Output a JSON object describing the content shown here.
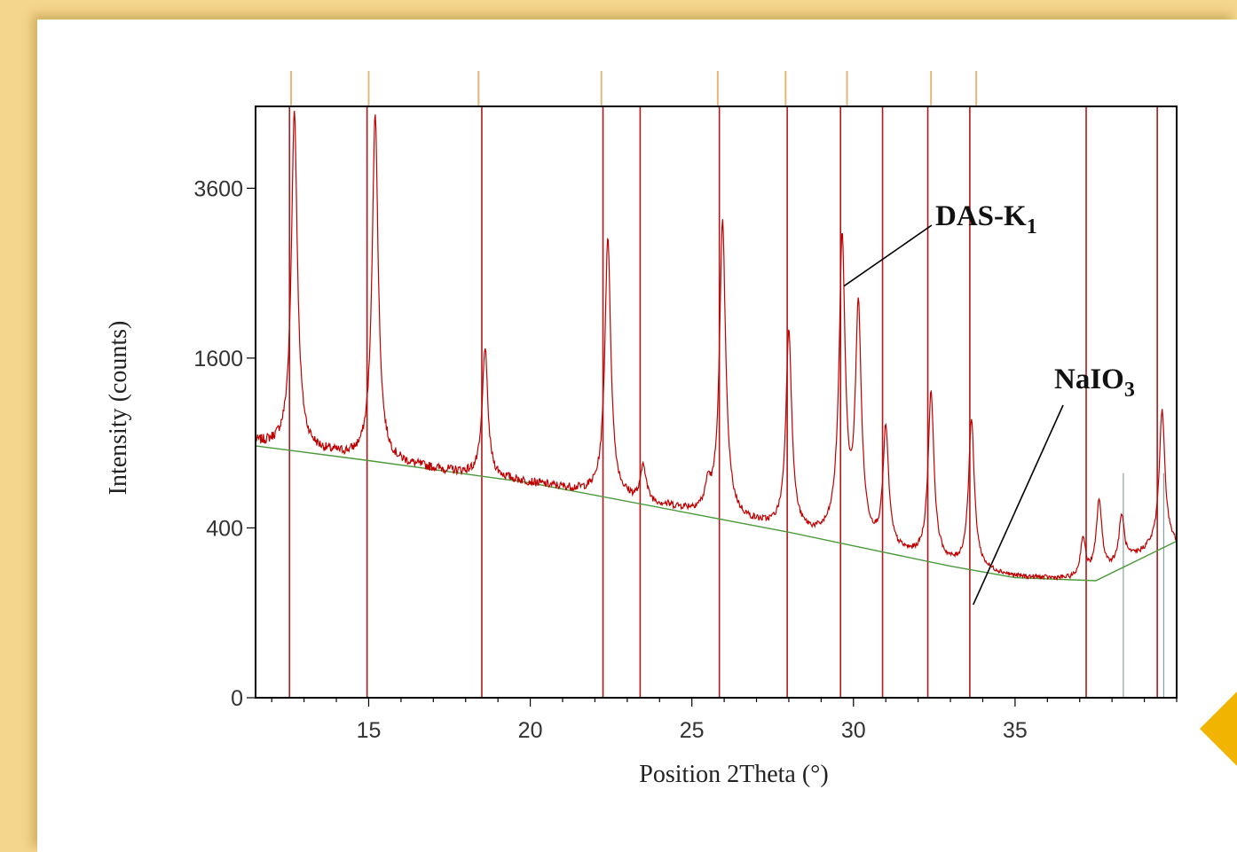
{
  "chart_data": {
    "type": "line",
    "title": "",
    "xlabel": "Position 2Theta (°)",
    "ylabel": "Intensity (counts)",
    "xlim": [
      11.5,
      40
    ],
    "y_scale": "sqrt",
    "ylim": [
      0,
      4850
    ],
    "x_ticks": [
      15,
      20,
      25,
      30,
      35
    ],
    "y_ticks": [
      0,
      400,
      1600,
      3600
    ],
    "grid": false,
    "series": [
      {
        "name": "DAS-K1",
        "color": "#c00000",
        "background": [
          [
            11.5,
            900
          ],
          [
            15,
            780
          ],
          [
            20,
            640
          ],
          [
            25,
            480
          ],
          [
            28,
            380
          ],
          [
            30,
            320
          ],
          [
            33,
            240
          ],
          [
            35,
            200
          ],
          [
            37,
            190
          ],
          [
            38,
            230
          ],
          [
            39.5,
            320
          ],
          [
            40,
            320
          ]
        ],
        "peaks": [
          {
            "x": 12.7,
            "y": 4800
          },
          {
            "x": 15.2,
            "y": 4750
          },
          {
            "x": 18.6,
            "y": 1700
          },
          {
            "x": 22.4,
            "y": 2950
          },
          {
            "x": 23.5,
            "y": 750
          },
          {
            "x": 25.5,
            "y": 600
          },
          {
            "x": 25.95,
            "y": 3150
          },
          {
            "x": 28.0,
            "y": 1880
          },
          {
            "x": 29.65,
            "y": 2950
          },
          {
            "x": 30.15,
            "y": 2130
          },
          {
            "x": 31.0,
            "y": 1000
          },
          {
            "x": 32.4,
            "y": 1300
          },
          {
            "x": 33.65,
            "y": 1070
          },
          {
            "x": 37.1,
            "y": 350
          },
          {
            "x": 37.6,
            "y": 540
          },
          {
            "x": 38.3,
            "y": 460
          },
          {
            "x": 39.1,
            "y": 300
          },
          {
            "x": 39.55,
            "y": 1150
          }
        ]
      },
      {
        "name": "NaIO3",
        "color": "#4a9a3a",
        "points": [
          [
            11.5,
            880
          ],
          [
            15,
            780
          ],
          [
            20,
            640
          ],
          [
            25,
            470
          ],
          [
            28,
            380
          ],
          [
            30,
            320
          ],
          [
            33,
            240
          ],
          [
            35,
            200
          ],
          [
            37.5,
            190
          ],
          [
            40,
            340
          ]
        ]
      }
    ],
    "reference_lines_DAS-K1": [
      12.55,
      14.95,
      18.5,
      22.25,
      23.4,
      25.85,
      27.95,
      29.6,
      30.9,
      32.3,
      33.6,
      37.2,
      39.4
    ],
    "reference_lines_NaIO3": [
      38.35,
      39.6
    ],
    "top_ticks": [
      12.6,
      15.0,
      18.4,
      22.2,
      25.8,
      27.9,
      29.8,
      32.4,
      33.8
    ],
    "annotations": [
      {
        "text": "DAS-K",
        "subscript": "1",
        "x": 29.65,
        "y": 2350
      },
      {
        "text": "NaIO",
        "subscript": "3",
        "x": 33.65,
        "y": 120
      }
    ]
  },
  "colors": {
    "frame": "#f4d68c",
    "accent": "#f1b400",
    "top_tick": "#e2b87a"
  }
}
